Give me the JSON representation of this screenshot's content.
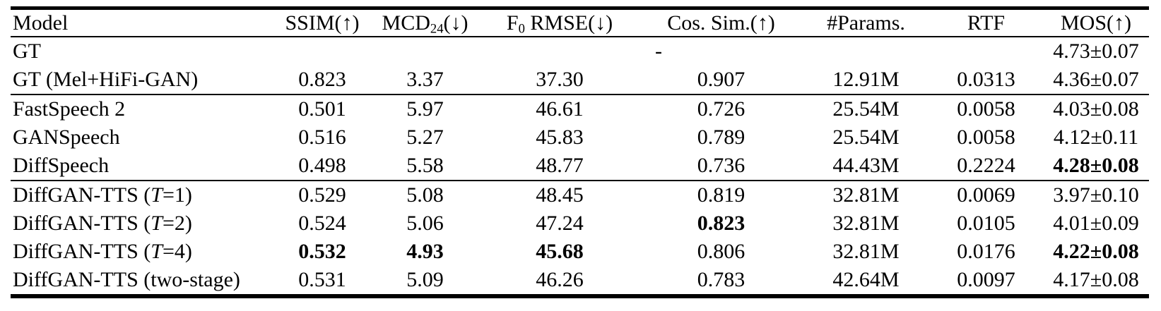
{
  "document": {
    "kind": "paper-results-table",
    "background_color": "#ffffff",
    "text_color": "#000000",
    "rule_color": "#000000"
  },
  "table": {
    "columns": [
      {
        "id": "model",
        "label_segments": [
          [
            "t",
            "Model"
          ]
        ]
      },
      {
        "id": "ssim",
        "label_segments": [
          [
            "t",
            "SSIM(↑)"
          ]
        ]
      },
      {
        "id": "mcd24",
        "label_segments": [
          [
            "t",
            "MCD"
          ],
          [
            "sub",
            "24"
          ],
          [
            "t",
            "(↓)"
          ]
        ]
      },
      {
        "id": "f0-rmse",
        "label_segments": [
          [
            "t",
            "F"
          ],
          [
            "sub",
            "0"
          ],
          [
            "t",
            " RMSE(↓)"
          ]
        ]
      },
      {
        "id": "cos-sim",
        "label_segments": [
          [
            "t",
            "Cos. Sim.(↑)"
          ]
        ]
      },
      {
        "id": "params",
        "label_segments": [
          [
            "t",
            "#Params."
          ]
        ]
      },
      {
        "id": "rtf",
        "label_segments": [
          [
            "t",
            "RTF"
          ]
        ]
      },
      {
        "id": "mos",
        "label_segments": [
          [
            "t",
            "MOS(↑)"
          ]
        ]
      }
    ],
    "rows": [
      {
        "id": "gt",
        "rule_below": false,
        "cells": [
          {
            "text": "GT"
          },
          {
            "text": "-",
            "colspan": 6
          },
          {
            "text": "4.73±0.07"
          }
        ]
      },
      {
        "id": "gt-mel-hifi-gan",
        "rule_below": true,
        "cells": [
          {
            "text": "GT (Mel+HiFi-GAN)"
          },
          {
            "text": "0.823"
          },
          {
            "text": "3.37"
          },
          {
            "text": "37.30"
          },
          {
            "text": "0.907"
          },
          {
            "text": "12.91M"
          },
          {
            "text": "0.0313"
          },
          {
            "text": "4.36±0.07"
          }
        ]
      },
      {
        "id": "fastspeech-2",
        "rule_below": false,
        "cells": [
          {
            "text": "FastSpeech 2"
          },
          {
            "text": "0.501"
          },
          {
            "text": "5.97"
          },
          {
            "text": "46.61"
          },
          {
            "text": "0.726"
          },
          {
            "text": "25.54M"
          },
          {
            "text": "0.0058"
          },
          {
            "text": "4.03±0.08"
          }
        ]
      },
      {
        "id": "ganspeech",
        "rule_below": false,
        "cells": [
          {
            "text": "GANSpeech"
          },
          {
            "text": "0.516"
          },
          {
            "text": "5.27"
          },
          {
            "text": "45.83"
          },
          {
            "text": "0.789"
          },
          {
            "text": "25.54M"
          },
          {
            "text": "0.0058"
          },
          {
            "text": "4.12±0.11"
          }
        ]
      },
      {
        "id": "diffspeech",
        "rule_below": true,
        "cells": [
          {
            "text": "DiffSpeech"
          },
          {
            "text": "0.498"
          },
          {
            "text": "5.58"
          },
          {
            "text": "48.77"
          },
          {
            "text": "0.736"
          },
          {
            "text": "44.43M"
          },
          {
            "text": "0.2224"
          },
          {
            "text": "4.28±0.08",
            "bold": true
          }
        ]
      },
      {
        "id": "diffgan-tts-t1",
        "rule_below": false,
        "cells": [
          {
            "segments": [
              [
                "t",
                "DiffGAN-TTS ("
              ],
              [
                "i",
                "T"
              ],
              [
                "t",
                "=1)"
              ]
            ]
          },
          {
            "text": "0.529"
          },
          {
            "text": "5.08"
          },
          {
            "text": "48.45"
          },
          {
            "text": "0.819"
          },
          {
            "text": "32.81M"
          },
          {
            "text": "0.0069"
          },
          {
            "text": "3.97±0.10"
          }
        ]
      },
      {
        "id": "diffgan-tts-t2",
        "rule_below": false,
        "cells": [
          {
            "segments": [
              [
                "t",
                "DiffGAN-TTS ("
              ],
              [
                "i",
                "T"
              ],
              [
                "t",
                "=2)"
              ]
            ]
          },
          {
            "text": "0.524"
          },
          {
            "text": "5.06"
          },
          {
            "text": "47.24"
          },
          {
            "text": "0.823",
            "bold": true
          },
          {
            "text": "32.81M"
          },
          {
            "text": "0.0105"
          },
          {
            "text": "4.01±0.09"
          }
        ]
      },
      {
        "id": "diffgan-tts-t4",
        "rule_below": false,
        "cells": [
          {
            "segments": [
              [
                "t",
                "DiffGAN-TTS ("
              ],
              [
                "i",
                "T"
              ],
              [
                "t",
                "=4)"
              ]
            ]
          },
          {
            "text": "0.532",
            "bold": true
          },
          {
            "text": "4.93",
            "bold": true
          },
          {
            "text": "45.68",
            "bold": true
          },
          {
            "text": "0.806"
          },
          {
            "text": "32.81M"
          },
          {
            "text": "0.0176"
          },
          {
            "text": "4.22±0.08",
            "bold": true
          }
        ]
      },
      {
        "id": "diffgan-tts-two-stage",
        "rule_below": false,
        "cells": [
          {
            "text": "DiffGAN-TTS (two-stage)"
          },
          {
            "text": "0.531"
          },
          {
            "text": "5.09"
          },
          {
            "text": "46.26"
          },
          {
            "text": "0.783"
          },
          {
            "text": "42.64M"
          },
          {
            "text": "0.0097"
          },
          {
            "text": "4.17±0.08"
          }
        ]
      }
    ]
  }
}
